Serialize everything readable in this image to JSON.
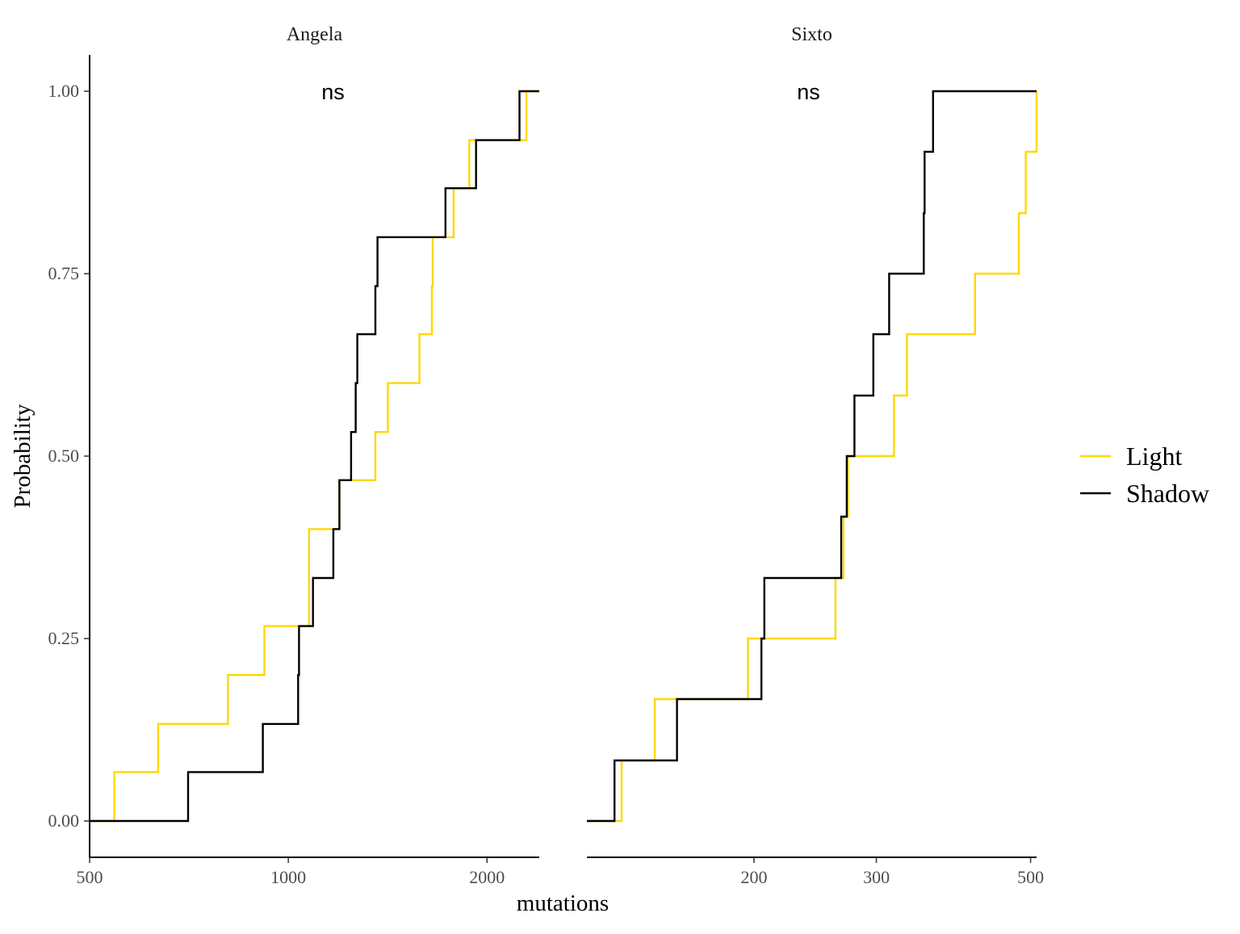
{
  "chart_data": {
    "type": "line",
    "subtype": "empirical-cdf-step",
    "xlabel": "mutations",
    "ylabel": "Probability",
    "x_scale": "log10",
    "ylim": [
      0,
      1
    ],
    "yticks": [
      {
        "value": 0,
        "label": "0.00"
      },
      {
        "value": 0.25,
        "label": "0.25"
      },
      {
        "value": 0.5,
        "label": "0.50"
      },
      {
        "value": 0.75,
        "label": "0.75"
      },
      {
        "value": 1,
        "label": "1.00"
      }
    ],
    "grid": false,
    "legend": {
      "position": "right",
      "entries": [
        {
          "name": "Light",
          "color": "#FFD700"
        },
        {
          "name": "Shadow",
          "color": "#000000"
        }
      ]
    },
    "panels": [
      {
        "label": "Angela",
        "annotation": "ns",
        "xlim": [
          500,
          2400
        ],
        "xticks": [
          {
            "value": 500,
            "label": "500"
          },
          {
            "value": 1000,
            "label": "1000"
          },
          {
            "value": 2000,
            "label": "2000"
          }
        ],
        "series": [
          {
            "name": "Light",
            "color": "#FFD700",
            "x": [
              500,
              545,
              635,
              810,
              920,
              1075,
              1195,
              1355,
              1415,
              1580,
              1650,
              1655,
              1780,
              1880,
              2295,
              2400
            ],
            "y": [
              0,
              0.067,
              0.133,
              0.2,
              0.267,
              0.4,
              0.467,
              0.533,
              0.6,
              0.667,
              0.733,
              0.8,
              0.867,
              0.933,
              1,
              1
            ]
          },
          {
            "name": "Shadow",
            "color": "#000000",
            "x": [
              500,
              705,
              915,
              1035,
              1038,
              1090,
              1170,
              1195,
              1245,
              1265,
              1272,
              1350,
              1355,
              1365,
              1730,
              1925,
              2240,
              2400
            ],
            "y": [
              0,
              0.067,
              0.133,
              0.2,
              0.267,
              0.333,
              0.4,
              0.467,
              0.533,
              0.6,
              0.667,
              0.667,
              0.733,
              0.8,
              0.867,
              0.933,
              1,
              1
            ]
          }
        ]
      },
      {
        "label": "Sixto",
        "annotation": "ns",
        "xlim": [
          115,
          510
        ],
        "xticks": [
          {
            "value": 200,
            "label": "200"
          },
          {
            "value": 300,
            "label": "300"
          },
          {
            "value": 500,
            "label": "500"
          }
        ],
        "series": [
          {
            "name": "Light",
            "color": "#FFD700",
            "x": [
              115,
              129,
              144,
              196,
              262,
              269,
              273,
              318,
              332,
              416,
              481,
              492,
              510
            ],
            "y": [
              0,
              0.083,
              0.167,
              0.25,
              0.333,
              0.417,
              0.5,
              0.583,
              0.667,
              0.75,
              0.833,
              0.917,
              1
            ]
          },
          {
            "name": "Shadow",
            "color": "#000000",
            "x": [
              115,
              126,
              155,
              205,
              207,
              267,
              272,
              279,
              297,
              313,
              351,
              352,
              362,
              510
            ],
            "y": [
              0,
              0.083,
              0.167,
              0.25,
              0.333,
              0.417,
              0.5,
              0.583,
              0.667,
              0.75,
              0.833,
              0.917,
              1,
              1
            ]
          }
        ]
      }
    ]
  }
}
